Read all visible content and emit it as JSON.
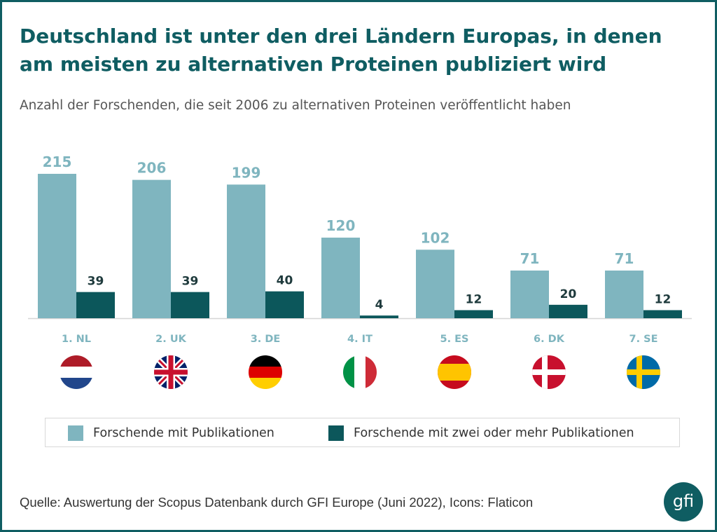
{
  "title": "Deutschland ist unter den drei Ländern Europas, in denen am meisten zu alternativen Proteinen publiziert wird",
  "subtitle": "Anzahl der Forschenden, die seit 2006 zu alternativen Proteinen veröffentlicht haben",
  "source": "Quelle: Auswertung der Scopus Datenbank durch GFI Europe (Juni 2022), Icons: Flaticon",
  "logo_text": "gfi",
  "colors": {
    "accent": "#0f5d62",
    "series_light": "#7fb5bf",
    "series_dark": "#0c575b",
    "label_light": "#7fb5bf"
  },
  "chart_data": {
    "type": "bar",
    "categories": [
      "1. NL",
      "2. UK",
      "3. DE",
      "4. IT",
      "5. ES",
      "6. DK",
      "7. SE"
    ],
    "flags": [
      "netherlands-flag",
      "uk-flag",
      "germany-flag",
      "italy-flag",
      "spain-flag",
      "denmark-flag",
      "sweden-flag"
    ],
    "series": [
      {
        "name": "Forschende mit Publikationen",
        "values": [
          215,
          206,
          199,
          120,
          102,
          71,
          71
        ],
        "color": "#7fb5bf"
      },
      {
        "name": "Forschende mit zwei oder mehr Publikationen",
        "values": [
          39,
          39,
          40,
          4,
          12,
          20,
          12
        ],
        "color": "#0c575b"
      }
    ],
    "ylim": [
      0,
      215
    ],
    "grid": false,
    "legend": "bottom"
  }
}
